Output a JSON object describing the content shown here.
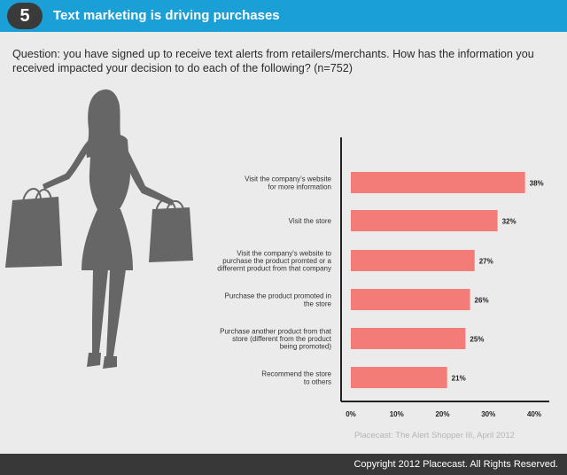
{
  "header": {
    "number": "5",
    "title": "Text marketing is driving purchases"
  },
  "question": "Question: you have signed up to receive text alerts from retailers/merchants. How has the information you received impacted your decision to do each of the following? (n=752)",
  "chart_data": {
    "type": "bar",
    "orientation": "horizontal",
    "categories": [
      [
        "Visit the company's website",
        "for more information"
      ],
      [
        "Visit the store"
      ],
      [
        "Visit the company's website to",
        "purchase the product promted or a",
        "differernt product from that company"
      ],
      [
        "Purchase the product promoted in",
        "the store"
      ],
      [
        "Purchase another product from that",
        "store (different from the product",
        "being promoted)"
      ],
      [
        "Recommend the store",
        "to others"
      ]
    ],
    "values": [
      38,
      32,
      27,
      26,
      25,
      21
    ],
    "value_labels": [
      "38%",
      "32%",
      "27%",
      "26%",
      "25%",
      "21%"
    ],
    "xlim": [
      0,
      40
    ],
    "x_ticks": [
      "0%",
      "10%",
      "20%",
      "30%",
      "40%"
    ],
    "grid": false,
    "bar_color": "#f47c78"
  },
  "source": "Placecast: The Alert Shopper III, April 2012",
  "footer": {
    "copyright": "Copyright 2012 Placecast. All Rights Reserved."
  }
}
